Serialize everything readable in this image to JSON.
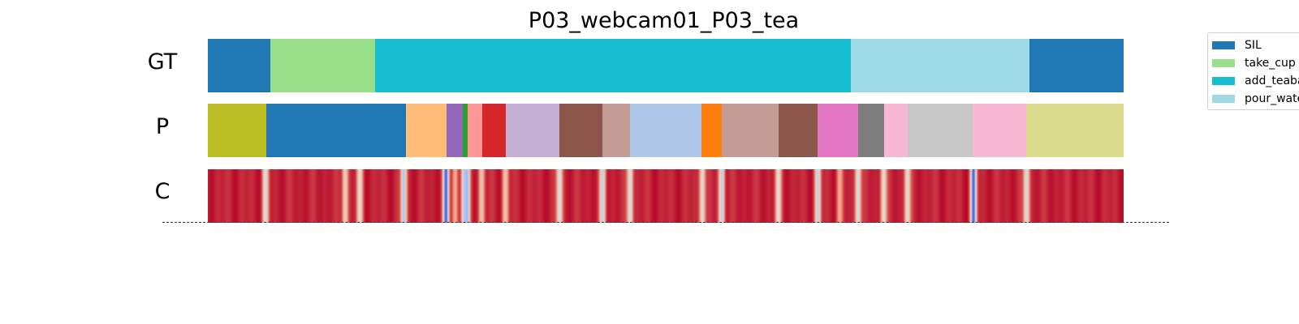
{
  "chart_data": {
    "type": "heatmap",
    "title": "P03_webcam01_P03_tea",
    "total_frames": 1000,
    "rows": [
      {
        "key": "gt",
        "label": "GT",
        "segments": [
          {
            "action": "SIL",
            "start": 0,
            "end": 68,
            "color": "#1f77b4"
          },
          {
            "action": "take_cup",
            "start": 68,
            "end": 183,
            "color": "#98df8a"
          },
          {
            "action": "add_teabag",
            "start": 183,
            "end": 702,
            "color": "#17becf"
          },
          {
            "action": "pour_water",
            "start": 702,
            "end": 897,
            "color": "#9edae5"
          },
          {
            "action": "SIL",
            "start": 897,
            "end": 1000,
            "color": "#1f77b4"
          }
        ]
      },
      {
        "key": "p",
        "label": "P",
        "segments": [
          {
            "start": 0,
            "end": 64,
            "color": "#bcbd22"
          },
          {
            "start": 64,
            "end": 216,
            "color": "#1f77b4"
          },
          {
            "start": 216,
            "end": 261,
            "color": "#ffbb78"
          },
          {
            "start": 261,
            "end": 278,
            "color": "#9467bd"
          },
          {
            "start": 278,
            "end": 284,
            "color": "#2ca02c"
          },
          {
            "start": 284,
            "end": 300,
            "color": "#ff9896"
          },
          {
            "start": 300,
            "end": 325,
            "color": "#d62728"
          },
          {
            "start": 325,
            "end": 384,
            "color": "#c5b0d5"
          },
          {
            "start": 384,
            "end": 431,
            "color": "#8c564b"
          },
          {
            "start": 431,
            "end": 461,
            "color": "#c49c94"
          },
          {
            "start": 461,
            "end": 539,
            "color": "#aec7e8"
          },
          {
            "start": 539,
            "end": 561,
            "color": "#ff7f0e"
          },
          {
            "start": 561,
            "end": 623,
            "color": "#c49c94"
          },
          {
            "start": 623,
            "end": 666,
            "color": "#8c564b"
          },
          {
            "start": 666,
            "end": 710,
            "color": "#e377c2"
          },
          {
            "start": 710,
            "end": 739,
            "color": "#7f7f7f"
          },
          {
            "start": 739,
            "end": 764,
            "color": "#f7b6d2"
          },
          {
            "start": 764,
            "end": 835,
            "color": "#c7c7c7"
          },
          {
            "start": 835,
            "end": 894,
            "color": "#f7b6d2"
          },
          {
            "start": 894,
            "end": 1000,
            "color": "#dbdb8d"
          }
        ]
      },
      {
        "key": "c",
        "label": "C",
        "colormap": "coolwarm",
        "base_value": 0.95,
        "dips": [
          {
            "position": 63,
            "value": 0.45
          },
          {
            "position": 150,
            "value": 0.55
          },
          {
            "position": 166,
            "value": 0.5
          },
          {
            "position": 214,
            "value": 0.35
          },
          {
            "position": 260,
            "value": 0.05
          },
          {
            "position": 270,
            "value": 0.7
          },
          {
            "position": 280,
            "value": 0.4
          },
          {
            "position": 283,
            "value": 0.3
          },
          {
            "position": 299,
            "value": 0.6
          },
          {
            "position": 325,
            "value": 0.6
          },
          {
            "position": 384,
            "value": 0.45
          },
          {
            "position": 431,
            "value": 0.4
          },
          {
            "position": 461,
            "value": 0.45
          },
          {
            "position": 540,
            "value": 0.5
          },
          {
            "position": 561,
            "value": 0.4
          },
          {
            "position": 623,
            "value": 0.5
          },
          {
            "position": 666,
            "value": 0.4
          },
          {
            "position": 690,
            "value": 0.7
          },
          {
            "position": 710,
            "value": 0.45
          },
          {
            "position": 738,
            "value": 0.5
          },
          {
            "position": 764,
            "value": 0.5
          },
          {
            "position": 836,
            "value": 0.05
          },
          {
            "position": 894,
            "value": 0.45
          }
        ]
      }
    ],
    "legend": {
      "placement": "upper-right",
      "entries": [
        {
          "label": "SIL",
          "color": "#1f77b4"
        },
        {
          "label": "take_cup",
          "color": "#98df8a"
        },
        {
          "label": "add_teabag",
          "color": "#17becf"
        },
        {
          "label": "pour_water",
          "color": "#9edae5"
        }
      ]
    }
  }
}
